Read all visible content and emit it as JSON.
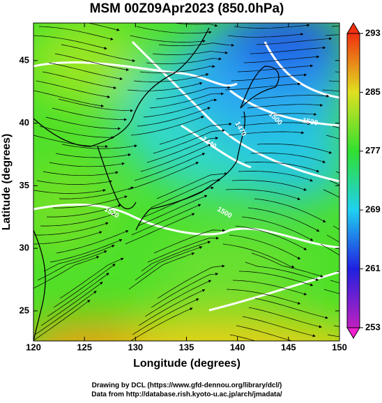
{
  "chart_data": {
    "type": "map",
    "title": "MSM 00Z09Apr2023 (850.0hPa)",
    "xlabel": "Longitude (degrees)",
    "ylabel": "Latitude  (degrees)",
    "xlim": [
      120,
      150
    ],
    "ylim": [
      22.6,
      48.0
    ],
    "xticks": [
      120,
      125,
      130,
      135,
      140,
      145,
      150
    ],
    "yticks": [
      25,
      30,
      35,
      40,
      45
    ],
    "colorbar": {
      "lim": [
        253,
        293
      ],
      "ticks": [
        253,
        261,
        269,
        277,
        285,
        293
      ],
      "colors": [
        "#c020c0",
        "#2020e0",
        "#20d0f0",
        "#30e030",
        "#e0e020",
        "#f03010"
      ]
    },
    "contour_labels": [
      "1440",
      "1470",
      "1500",
      "1530",
      "1520",
      "1500"
    ],
    "footer": [
      "Drawing by DCL (https://www.gfd-dennou.org/library/dcl/)",
      "Data from http://database.rish.kyoto-u.ac.jp/arch/jmadata/"
    ]
  }
}
